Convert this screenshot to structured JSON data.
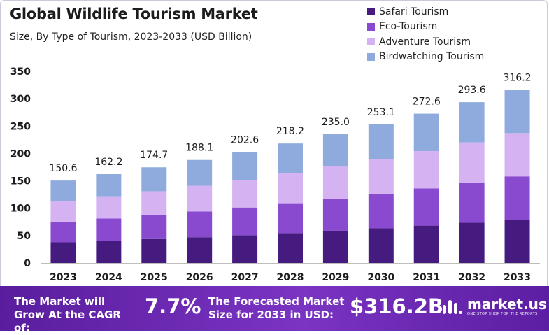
{
  "chart_data": {
    "type": "bar",
    "stacked": true,
    "title": "Global Wildlife Tourism Market",
    "subtitle": "Size, By Type of Tourism, 2023-2033 (USD Billion)",
    "categories": [
      "2023",
      "2024",
      "2025",
      "2026",
      "2027",
      "2028",
      "2029",
      "2030",
      "2031",
      "2032",
      "2033"
    ],
    "series": [
      {
        "name": "Safari Tourism",
        "color": "#451b80",
        "values": [
          37.7,
          40.6,
          43.7,
          47.0,
          50.7,
          54.6,
          58.8,
          63.3,
          68.2,
          73.4,
          79.1
        ]
      },
      {
        "name": "Eco-Tourism",
        "color": "#8a4ad0",
        "values": [
          37.7,
          40.6,
          43.7,
          47.0,
          50.6,
          54.5,
          58.7,
          63.3,
          68.1,
          73.4,
          79.0
        ]
      },
      {
        "name": "Adventure Tourism",
        "color": "#d5b3f2",
        "values": [
          37.6,
          40.5,
          43.6,
          47.0,
          50.6,
          54.5,
          58.8,
          63.2,
          68.1,
          73.4,
          79.1
        ]
      },
      {
        "name": "Birdwatching Tourism",
        "color": "#8faadc",
        "values": [
          37.6,
          40.5,
          43.7,
          47.1,
          50.7,
          54.6,
          58.7,
          63.3,
          68.2,
          73.4,
          79.0
        ]
      }
    ],
    "totals": [
      "150.6",
      "162.2",
      "174.7",
      "188.1",
      "202.6",
      "218.2",
      "235.0",
      "253.1",
      "272.6",
      "293.6",
      "316.2"
    ],
    "ylim": [
      0,
      350
    ],
    "yticks": [
      "0",
      "50",
      "100",
      "150",
      "200",
      "250",
      "300",
      "350"
    ],
    "xlabel": "",
    "ylabel": "",
    "legend_position": "top-right"
  },
  "footer": {
    "cagr_label": "The Market will Grow At the CAGR of:",
    "cagr_value": "7.7%",
    "forecast_label": "The Forecasted Market Size for 2033 in USD:",
    "forecast_value": "$316.2B",
    "brand_name": "market.us",
    "brand_tagline": "ONE STOP SHOP FOR THE REPORTS"
  }
}
